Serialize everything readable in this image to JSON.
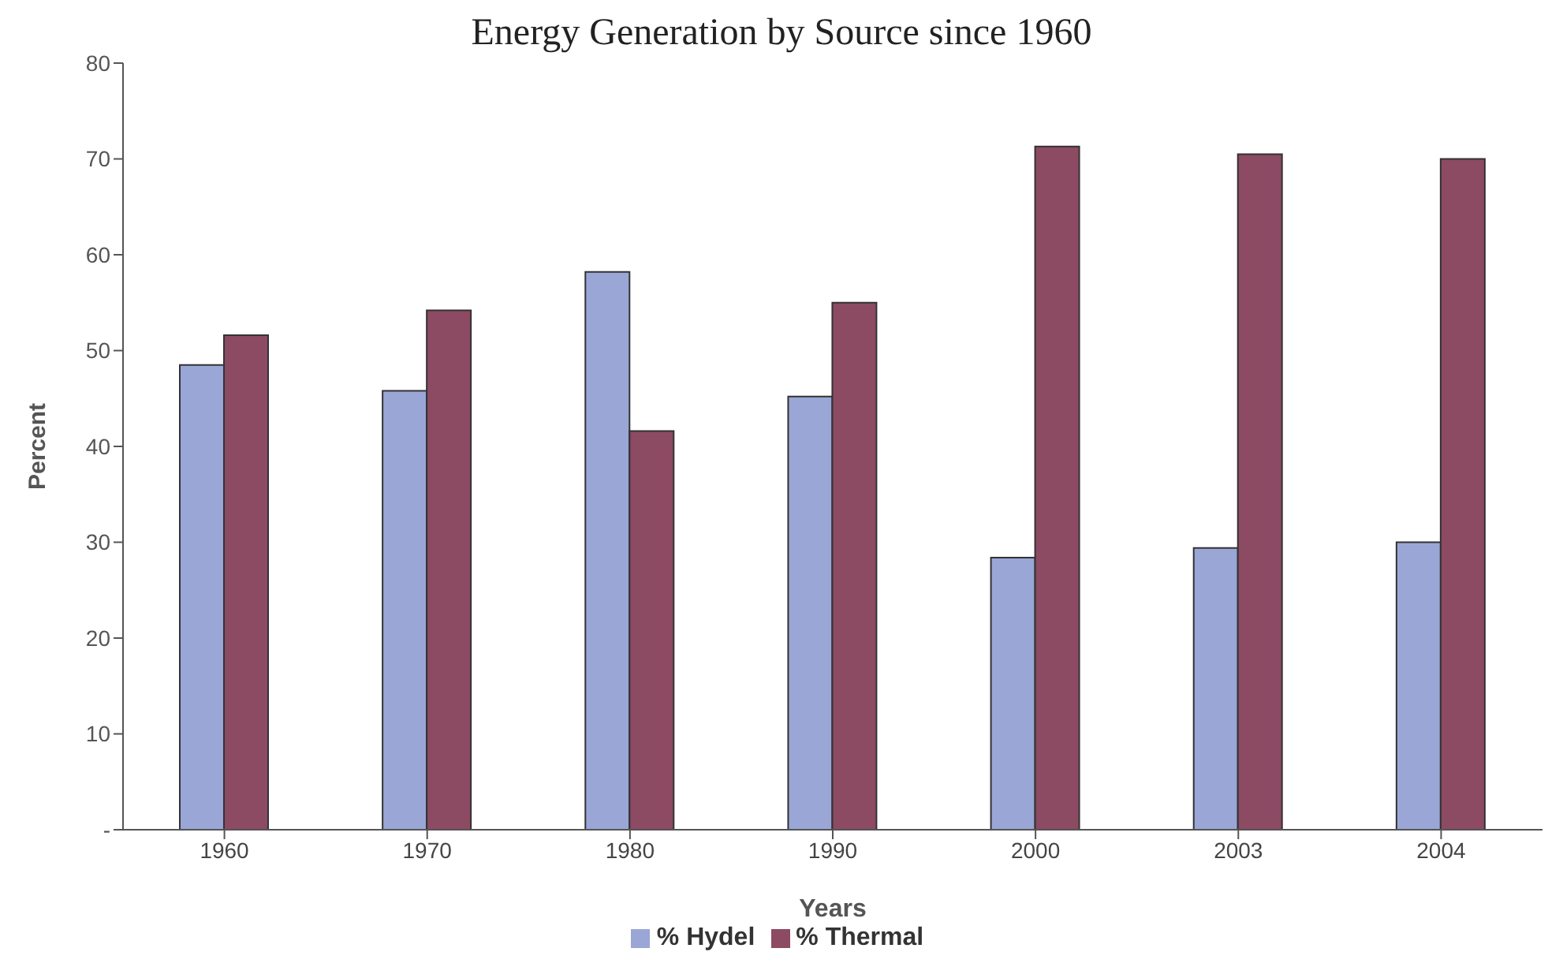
{
  "chart_data": {
    "type": "bar",
    "title": "Energy Generation by Source since 1960",
    "xlabel": "Years",
    "ylabel": "Percent",
    "categories": [
      "1960",
      "1970",
      "1980",
      "1990",
      "2000",
      "2003",
      "2004"
    ],
    "series": [
      {
        "name": "% Hydel",
        "color": "#9aa6d6",
        "values": [
          48.5,
          45.8,
          58.2,
          45.2,
          28.4,
          29.4,
          30.0
        ]
      },
      {
        "name": "% Thermal",
        "color": "#8c4a63",
        "values": [
          51.6,
          54.2,
          41.6,
          55.0,
          71.3,
          70.5,
          70.0
        ]
      }
    ],
    "ylim": [
      0,
      80
    ],
    "yticks": [
      {
        "value": 0,
        "label": "-"
      },
      10,
      20,
      30,
      40,
      50,
      60,
      70,
      80
    ],
    "grid": false,
    "legend": "bottom"
  }
}
